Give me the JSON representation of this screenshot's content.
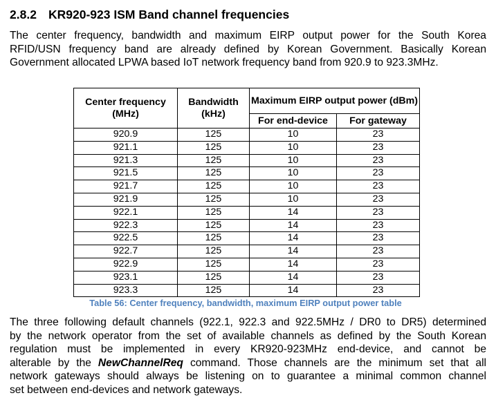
{
  "section": {
    "number": "2.8.2",
    "title": "KR920-923 ISM Band channel frequencies"
  },
  "intro_lines": [
    "The center frequency, bandwidth and maximum EIRP output power for the South Korea",
    "RFID/USN frequency band are already defined by Korean Government. Basically Korean",
    "Government allocated LPWA based IoT network frequency band from 920.9 to 923.3MHz."
  ],
  "table": {
    "headers": {
      "center_frequency": "Center frequency (MHz)",
      "bandwidth": "Bandwidth (kHz)",
      "max_eirp": "Maximum EIRP output power (dBm)",
      "end_device": "For end-device",
      "gateway": "For gateway"
    },
    "rows": [
      [
        "920.9",
        "125",
        "10",
        "23"
      ],
      [
        "921.1",
        "125",
        "10",
        "23"
      ],
      [
        "921.3",
        "125",
        "10",
        "23"
      ],
      [
        "921.5",
        "125",
        "10",
        "23"
      ],
      [
        "921.7",
        "125",
        "10",
        "23"
      ],
      [
        "921.9",
        "125",
        "10",
        "23"
      ],
      [
        "922.1",
        "125",
        "14",
        "23"
      ],
      [
        "922.3",
        "125",
        "14",
        "23"
      ],
      [
        "922.5",
        "125",
        "14",
        "23"
      ],
      [
        "922.7",
        "125",
        "14",
        "23"
      ],
      [
        "922.9",
        "125",
        "14",
        "23"
      ],
      [
        "923.1",
        "125",
        "14",
        "23"
      ],
      [
        "923.3",
        "125",
        "14",
        "23"
      ]
    ],
    "caption": "Table 56: Center frequency, bandwidth, maximum EIRP output power table"
  },
  "body": {
    "line1": "The three following default channels (922.1, 922.3 and 922.5MHz / DR0 to DR5) determined",
    "line2": "by the network operator from the set of available channels as defined by the South Korean",
    "line3": "regulation must be implemented in every KR920-923MHz end-device, and cannot be",
    "line4_pre": "alterable by the ",
    "command": "NewChannelReq",
    "line4_post": " command. Those channels are the minimum set that all",
    "line5": "network gateways should always be listening on to guarantee a minimal common channel",
    "line6": "set between end-devices and network gateways."
  },
  "colors": {
    "caption": "#4f81bd",
    "text": "#000000"
  }
}
